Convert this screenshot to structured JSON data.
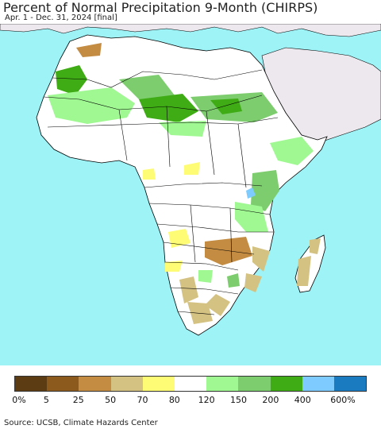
{
  "title": "Percent of Normal Precipitation 9-Month (CHIRPS)",
  "subtitle": "Apr. 1 - Dec. 31, 2024 [final]",
  "source": "Source: UCSB, Climate Hazards Center",
  "legend": {
    "colors": [
      "#5c3c12",
      "#8d5a1e",
      "#c38c42",
      "#d4c283",
      "#fdfc74",
      "#ffffff",
      "#a0f893",
      "#7dcd6f",
      "#3fac15",
      "#7dcbff",
      "#1b7bc1"
    ],
    "labels": [
      "0%",
      "5",
      "25",
      "50",
      "70",
      "80",
      "120",
      "150",
      "200",
      "400",
      "600%"
    ]
  },
  "map": {
    "ocean_color": "#9ef3f7",
    "outside_land_color": "#ece8ee",
    "border_color": "#000000"
  }
}
